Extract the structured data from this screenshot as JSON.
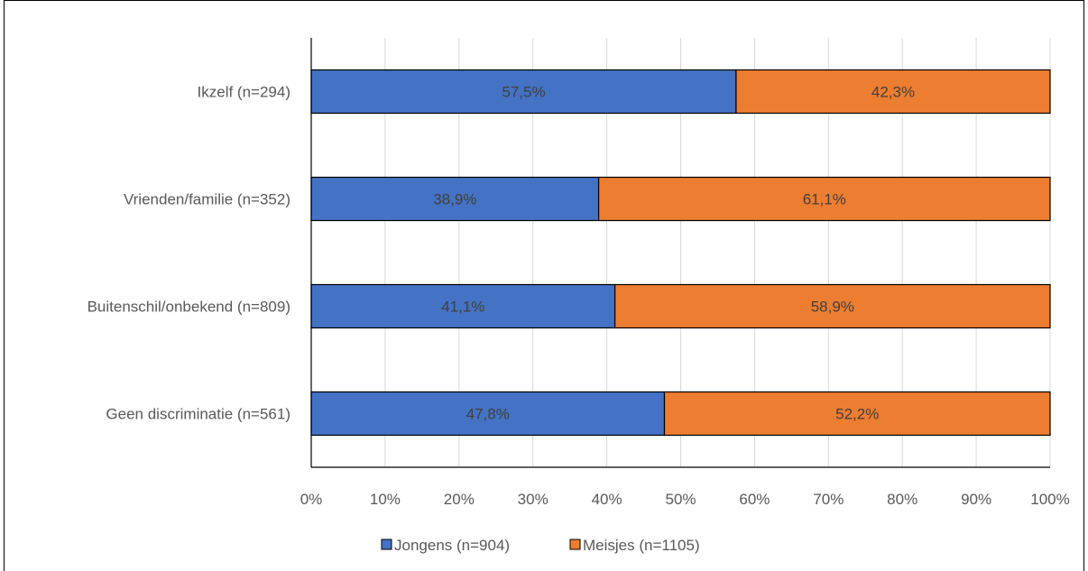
{
  "chart_data": {
    "type": "bar",
    "orientation": "horizontal",
    "stacked": "percent",
    "categories": [
      "Ikzelf (n=294)",
      "Vrienden/familie (n=352)",
      "Buitenschil/onbekend (n=809)",
      "Geen discriminatie (n=561)"
    ],
    "series": [
      {
        "name": "Jongens (n=904)",
        "color": "#4472C4",
        "values": [
          57.5,
          38.9,
          41.1,
          47.8
        ],
        "labels": [
          "57,5%",
          "38,9%",
          "41,1%",
          "47,8%"
        ]
      },
      {
        "name": "Meisjes (n=1105)",
        "color": "#ED7D31",
        "values": [
          42.3,
          61.1,
          58.9,
          52.2
        ],
        "labels": [
          "42,3%",
          "61,1%",
          "58,9%",
          "52,2%"
        ]
      }
    ],
    "xlim": [
      0,
      100
    ],
    "xticks": [
      "0%",
      "10%",
      "20%",
      "30%",
      "40%",
      "50%",
      "60%",
      "70%",
      "80%",
      "90%",
      "100%"
    ],
    "grid": true,
    "legend_position": "bottom"
  }
}
